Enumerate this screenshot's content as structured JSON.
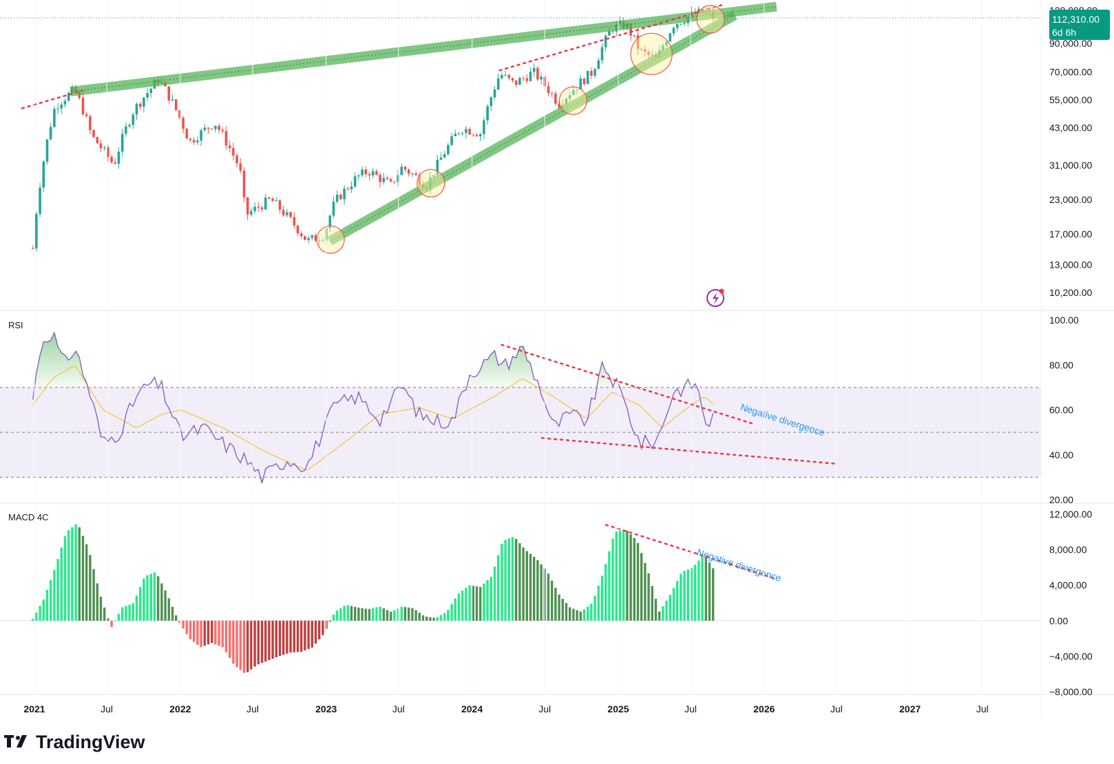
{
  "brand": {
    "name": "TradingView"
  },
  "price_tag": {
    "price": "112,310.00",
    "countdown": "6d 6h",
    "color": "#089981"
  },
  "colors": {
    "up": "#26a69a",
    "down": "#ef5350",
    "trendline": "#4caf50",
    "dotted": "#f23645",
    "rsi": "#7e57c2",
    "rsi_ma": "#f5c542",
    "macd_up_strong": "#00e676",
    "macd_up_weak": "#2e7d32",
    "macd_down_strong": "#ff5252",
    "macd_down_weak": "#b71c1c",
    "annotation": "#2196f3",
    "band": "#ede7f6",
    "highlight": "#fff59d",
    "highlight_border": "#ef5350"
  },
  "icons": {
    "lightning_marker": "lightning-icon",
    "brand_logo": "tradingview-logo-icon"
  },
  "x_axis": {
    "labels": [
      "2021",
      "Jul",
      "2022",
      "Jul",
      "2023",
      "Jul",
      "2024",
      "Jul",
      "2025",
      "Jul",
      "2026",
      "Jul",
      "2027",
      "Jul"
    ],
    "dates": [
      "2021-01",
      "2021-07",
      "2022-01",
      "2022-07",
      "2023-01",
      "2023-07",
      "2024-01",
      "2024-07",
      "2025-01",
      "2025-07",
      "2026-01",
      "2026-07",
      "2027-01",
      "2027-07"
    ]
  },
  "chart_data": [
    {
      "type": "line",
      "pane": "price",
      "scale": "log",
      "y_tick_labels": [
        "120,000.00",
        "90,000.00",
        "70,000.00",
        "55,000.00",
        "43,000.00",
        "31,000.00",
        "23,000.00",
        "17,000.00",
        "13,000.00",
        "10,200.00"
      ],
      "y_ticks": [
        120000,
        90000,
        70000,
        55000,
        43000,
        31000,
        23000,
        17000,
        13000,
        10200
      ],
      "ylim": [
        9000,
        125000
      ],
      "series": [
        {
          "dates": [
            "2020-12-28",
            "2021-01-25",
            "2021-02-22",
            "2021-04-12",
            "2021-05-24",
            "2021-07-19",
            "2021-09-06",
            "2021-10-25",
            "2021-11-08",
            "2022-01-24",
            "2022-03-28",
            "2022-05-30",
            "2022-06-13",
            "2022-08-15",
            "2022-11-14",
            "2022-12-26",
            "2023-01-23",
            "2023-03-20",
            "2023-04-17",
            "2023-06-12",
            "2023-07-10",
            "2023-09-11",
            "2023-10-23",
            "2023-12-04",
            "2024-01-22",
            "2024-03-11",
            "2024-04-15",
            "2024-06-03",
            "2024-08-05",
            "2024-09-09",
            "2024-10-28",
            "2024-12-16",
            "2025-01-20",
            "2025-02-24",
            "2025-04-07",
            "2025-05-19",
            "2025-07-14",
            "2025-08-11",
            "2025-09-01"
          ],
          "values": [
            15000,
            33000,
            52000,
            60000,
            40000,
            31000,
            50000,
            62000,
            66000,
            38000,
            45000,
            30000,
            20000,
            23000,
            16000,
            16800,
            22500,
            28000,
            29500,
            26000,
            30500,
            26000,
            34500,
            43000,
            41000,
            69000,
            63000,
            70000,
            53000,
            60000,
            70000,
            103000,
            106000,
            84000,
            78000,
            106000,
            117000,
            118000,
            112310
          ]
        }
      ],
      "trendlines": [
        {
          "kind": "resistance",
          "from": [
            "2021-04-01",
            59000
          ],
          "to": [
            "2026-02-01",
            124000
          ]
        },
        {
          "kind": "support",
          "from": [
            "2023-01-10",
            16000
          ],
          "to": [
            "2025-10-20",
            115000
          ]
        }
      ],
      "dotted_lines": [
        {
          "from": [
            "2020-12-01",
            51000
          ],
          "to": [
            "2021-05-01",
            59500
          ]
        },
        {
          "from": [
            "2024-03-10",
            71000
          ],
          "to": [
            "2025-09-20",
            126000
          ]
        }
      ],
      "highlights": [
        {
          "date": "2023-01-12",
          "value": 16200
        },
        {
          "date": "2023-09-20",
          "value": 26500
        },
        {
          "date": "2024-09-10",
          "value": 54500
        },
        {
          "date": "2025-03-25",
          "value": 82000
        },
        {
          "date": "2025-08-20",
          "value": 111000
        }
      ],
      "marker": {
        "date": "2025-09-01",
        "value": 10200
      }
    },
    {
      "type": "line",
      "pane": "rsi",
      "title": "RSI",
      "y_tick_labels": [
        "100.00",
        "80.00",
        "60.00",
        "40.00",
        "20.00"
      ],
      "y_ticks": [
        100,
        80,
        60,
        40,
        20
      ],
      "ylim": [
        20,
        100
      ],
      "band": [
        30,
        70
      ],
      "midline": 50,
      "series": [
        {
          "dates": [
            "2020-12-28",
            "2021-01-18",
            "2021-02-15",
            "2021-03-15",
            "2021-04-12",
            "2021-05-24",
            "2021-06-21",
            "2021-08-02",
            "2021-09-13",
            "2021-10-18",
            "2021-11-15",
            "2022-01-03",
            "2022-02-28",
            "2022-04-18",
            "2022-06-13",
            "2022-07-25",
            "2022-09-26",
            "2022-11-14",
            "2023-01-23",
            "2023-03-20",
            "2023-05-15",
            "2023-07-10",
            "2023-08-21",
            "2023-10-02",
            "2023-11-13",
            "2023-12-25",
            "2024-02-26",
            "2024-03-25",
            "2024-05-06",
            "2024-06-24",
            "2024-07-22",
            "2024-09-02",
            "2024-10-14",
            "2024-11-25",
            "2025-01-06",
            "2025-02-24",
            "2025-04-07",
            "2025-05-19",
            "2025-07-14",
            "2025-08-11",
            "2025-09-01"
          ],
          "values": [
            65,
            90,
            95,
            80,
            88,
            65,
            45,
            50,
            66,
            72,
            70,
            48,
            52,
            45,
            38,
            30,
            38,
            35,
            62,
            66,
            56,
            71,
            58,
            55,
            55,
            76,
            84,
            80,
            88,
            68,
            52,
            58,
            55,
            80,
            68,
            45,
            46,
            68,
            72,
            53,
            58
          ]
        },
        {
          "name": "MA",
          "dates": [
            "2020-12-28",
            "2021-02-15",
            "2021-04-12",
            "2021-06-21",
            "2021-09-13",
            "2021-11-15",
            "2022-01-03",
            "2022-04-18",
            "2022-07-25",
            "2022-11-14",
            "2023-02-20",
            "2023-05-15",
            "2023-08-21",
            "2023-11-13",
            "2024-02-26",
            "2024-05-06",
            "2024-07-22",
            "2024-10-14",
            "2024-12-16",
            "2025-02-24",
            "2025-04-21",
            "2025-06-16",
            "2025-08-04",
            "2025-09-01"
          ],
          "values": [
            62,
            74,
            80,
            60,
            52,
            58,
            60,
            52,
            42,
            33,
            46,
            58,
            61,
            56,
            66,
            74,
            66,
            56,
            68,
            62,
            52,
            60,
            66,
            62
          ]
        }
      ],
      "dotted_lines": [
        {
          "from": [
            "2024-03-15",
            89
          ],
          "to": [
            "2025-12-01",
            54
          ]
        },
        {
          "from": [
            "2024-06-24",
            47.5
          ],
          "to": [
            "2026-07-01",
            36
          ]
        }
      ],
      "annotation": {
        "text": "Negative divergence",
        "date": "2025-11-01",
        "value": 60
      }
    },
    {
      "type": "bar",
      "pane": "macd",
      "title": "MACD 4C",
      "y_tick_labels": [
        "12,000.00",
        "8,000.00",
        "4,000.00",
        "0.00",
        "−4,000.00",
        "−8,000.00"
      ],
      "y_ticks": [
        12000,
        8000,
        4000,
        0,
        -4000,
        -8000
      ],
      "ylim": [
        -8000,
        12000
      ],
      "series": [
        {
          "dates": [
            "2020-12-28",
            "2021-01-25",
            "2021-02-22",
            "2021-03-22",
            "2021-04-19",
            "2021-05-17",
            "2021-06-14",
            "2021-07-12",
            "2021-08-09",
            "2021-09-06",
            "2021-10-04",
            "2021-11-01",
            "2021-11-29",
            "2021-12-27",
            "2022-01-24",
            "2022-02-21",
            "2022-03-21",
            "2022-04-18",
            "2022-05-16",
            "2022-06-13",
            "2022-07-11",
            "2022-08-08",
            "2022-09-05",
            "2022-10-03",
            "2022-10-31",
            "2022-11-28",
            "2022-12-26",
            "2023-01-23",
            "2023-02-20",
            "2023-03-20",
            "2023-04-17",
            "2023-05-15",
            "2023-06-12",
            "2023-07-10",
            "2023-08-07",
            "2023-09-04",
            "2023-10-02",
            "2023-10-30",
            "2023-11-27",
            "2023-12-25",
            "2024-01-22",
            "2024-02-19",
            "2024-03-18",
            "2024-04-15",
            "2024-05-13",
            "2024-06-10",
            "2024-07-08",
            "2024-08-05",
            "2024-09-02",
            "2024-09-30",
            "2024-10-28",
            "2024-11-25",
            "2024-12-23",
            "2025-01-20",
            "2025-02-17",
            "2025-03-17",
            "2025-04-14",
            "2025-05-12",
            "2025-06-09",
            "2025-07-07",
            "2025-08-04",
            "2025-09-01"
          ],
          "values": [
            200,
            2500,
            6000,
            10000,
            11000,
            8000,
            3000,
            -800,
            1500,
            2000,
            5000,
            5500,
            3000,
            0,
            -2000,
            -3000,
            -2500,
            -3000,
            -5000,
            -6000,
            -5000,
            -4500,
            -4000,
            -3600,
            -3500,
            -3000,
            -1500,
            1000,
            1800,
            1500,
            1300,
            1600,
            1000,
            1600,
            1400,
            500,
            300,
            1000,
            3000,
            4000,
            3800,
            5000,
            9000,
            9500,
            8000,
            7000,
            5500,
            3000,
            1500,
            1000,
            2000,
            5500,
            10000,
            10300,
            9000,
            5500,
            1000,
            3000,
            5500,
            6000,
            7500,
            5500
          ]
        }
      ],
      "dotted_lines": [
        {
          "from": [
            "2024-12-01",
            10800
          ],
          "to": [
            "2026-02-01",
            4700
          ]
        }
      ],
      "annotation": {
        "text": "Negative divergence",
        "date": "2025-07-15",
        "value": 7400
      }
    }
  ]
}
